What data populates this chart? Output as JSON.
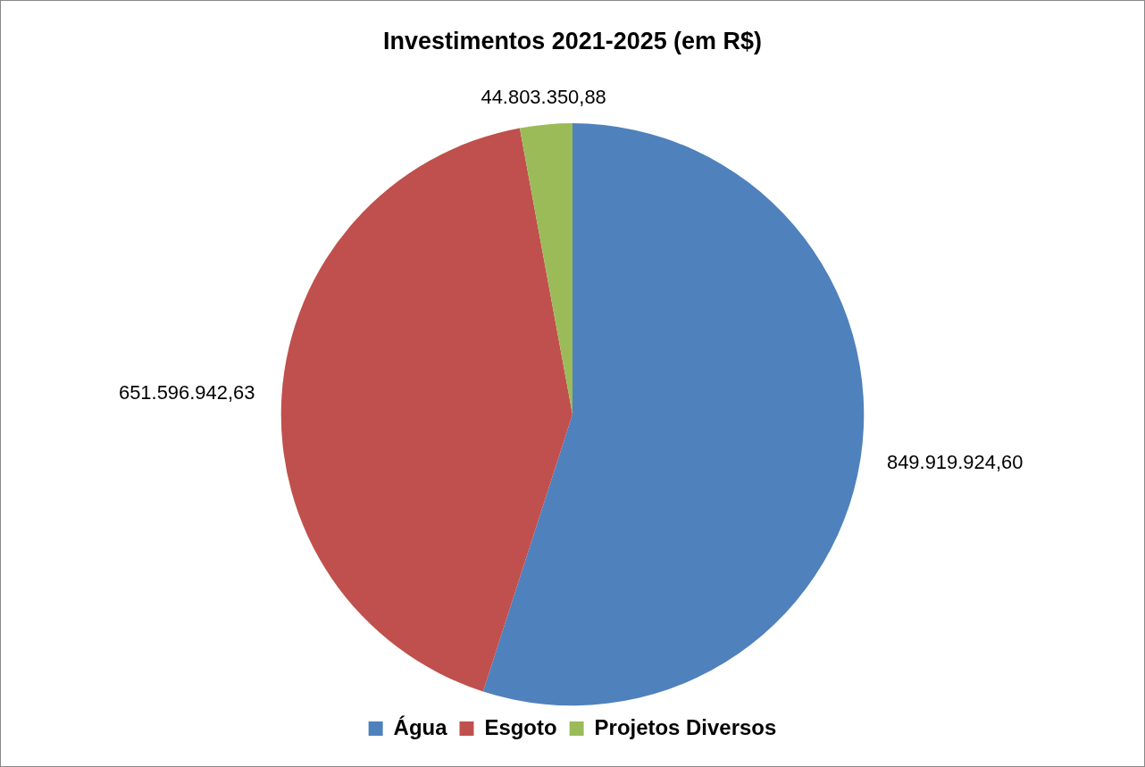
{
  "chart_data": {
    "type": "pie",
    "title": "Investimentos 2021-2025 (em R$)",
    "categories": [
      "Água",
      "Esgoto",
      "Projetos Diversos"
    ],
    "values": [
      849919924.6,
      651596942.63,
      44803350.88
    ],
    "colors": [
      "#4f81bd",
      "#c0504d",
      "#9bbb59"
    ],
    "value_labels": [
      "849.919.924,60",
      "651.596.942,63",
      "44.803.350,88"
    ],
    "legend": "bottom"
  }
}
